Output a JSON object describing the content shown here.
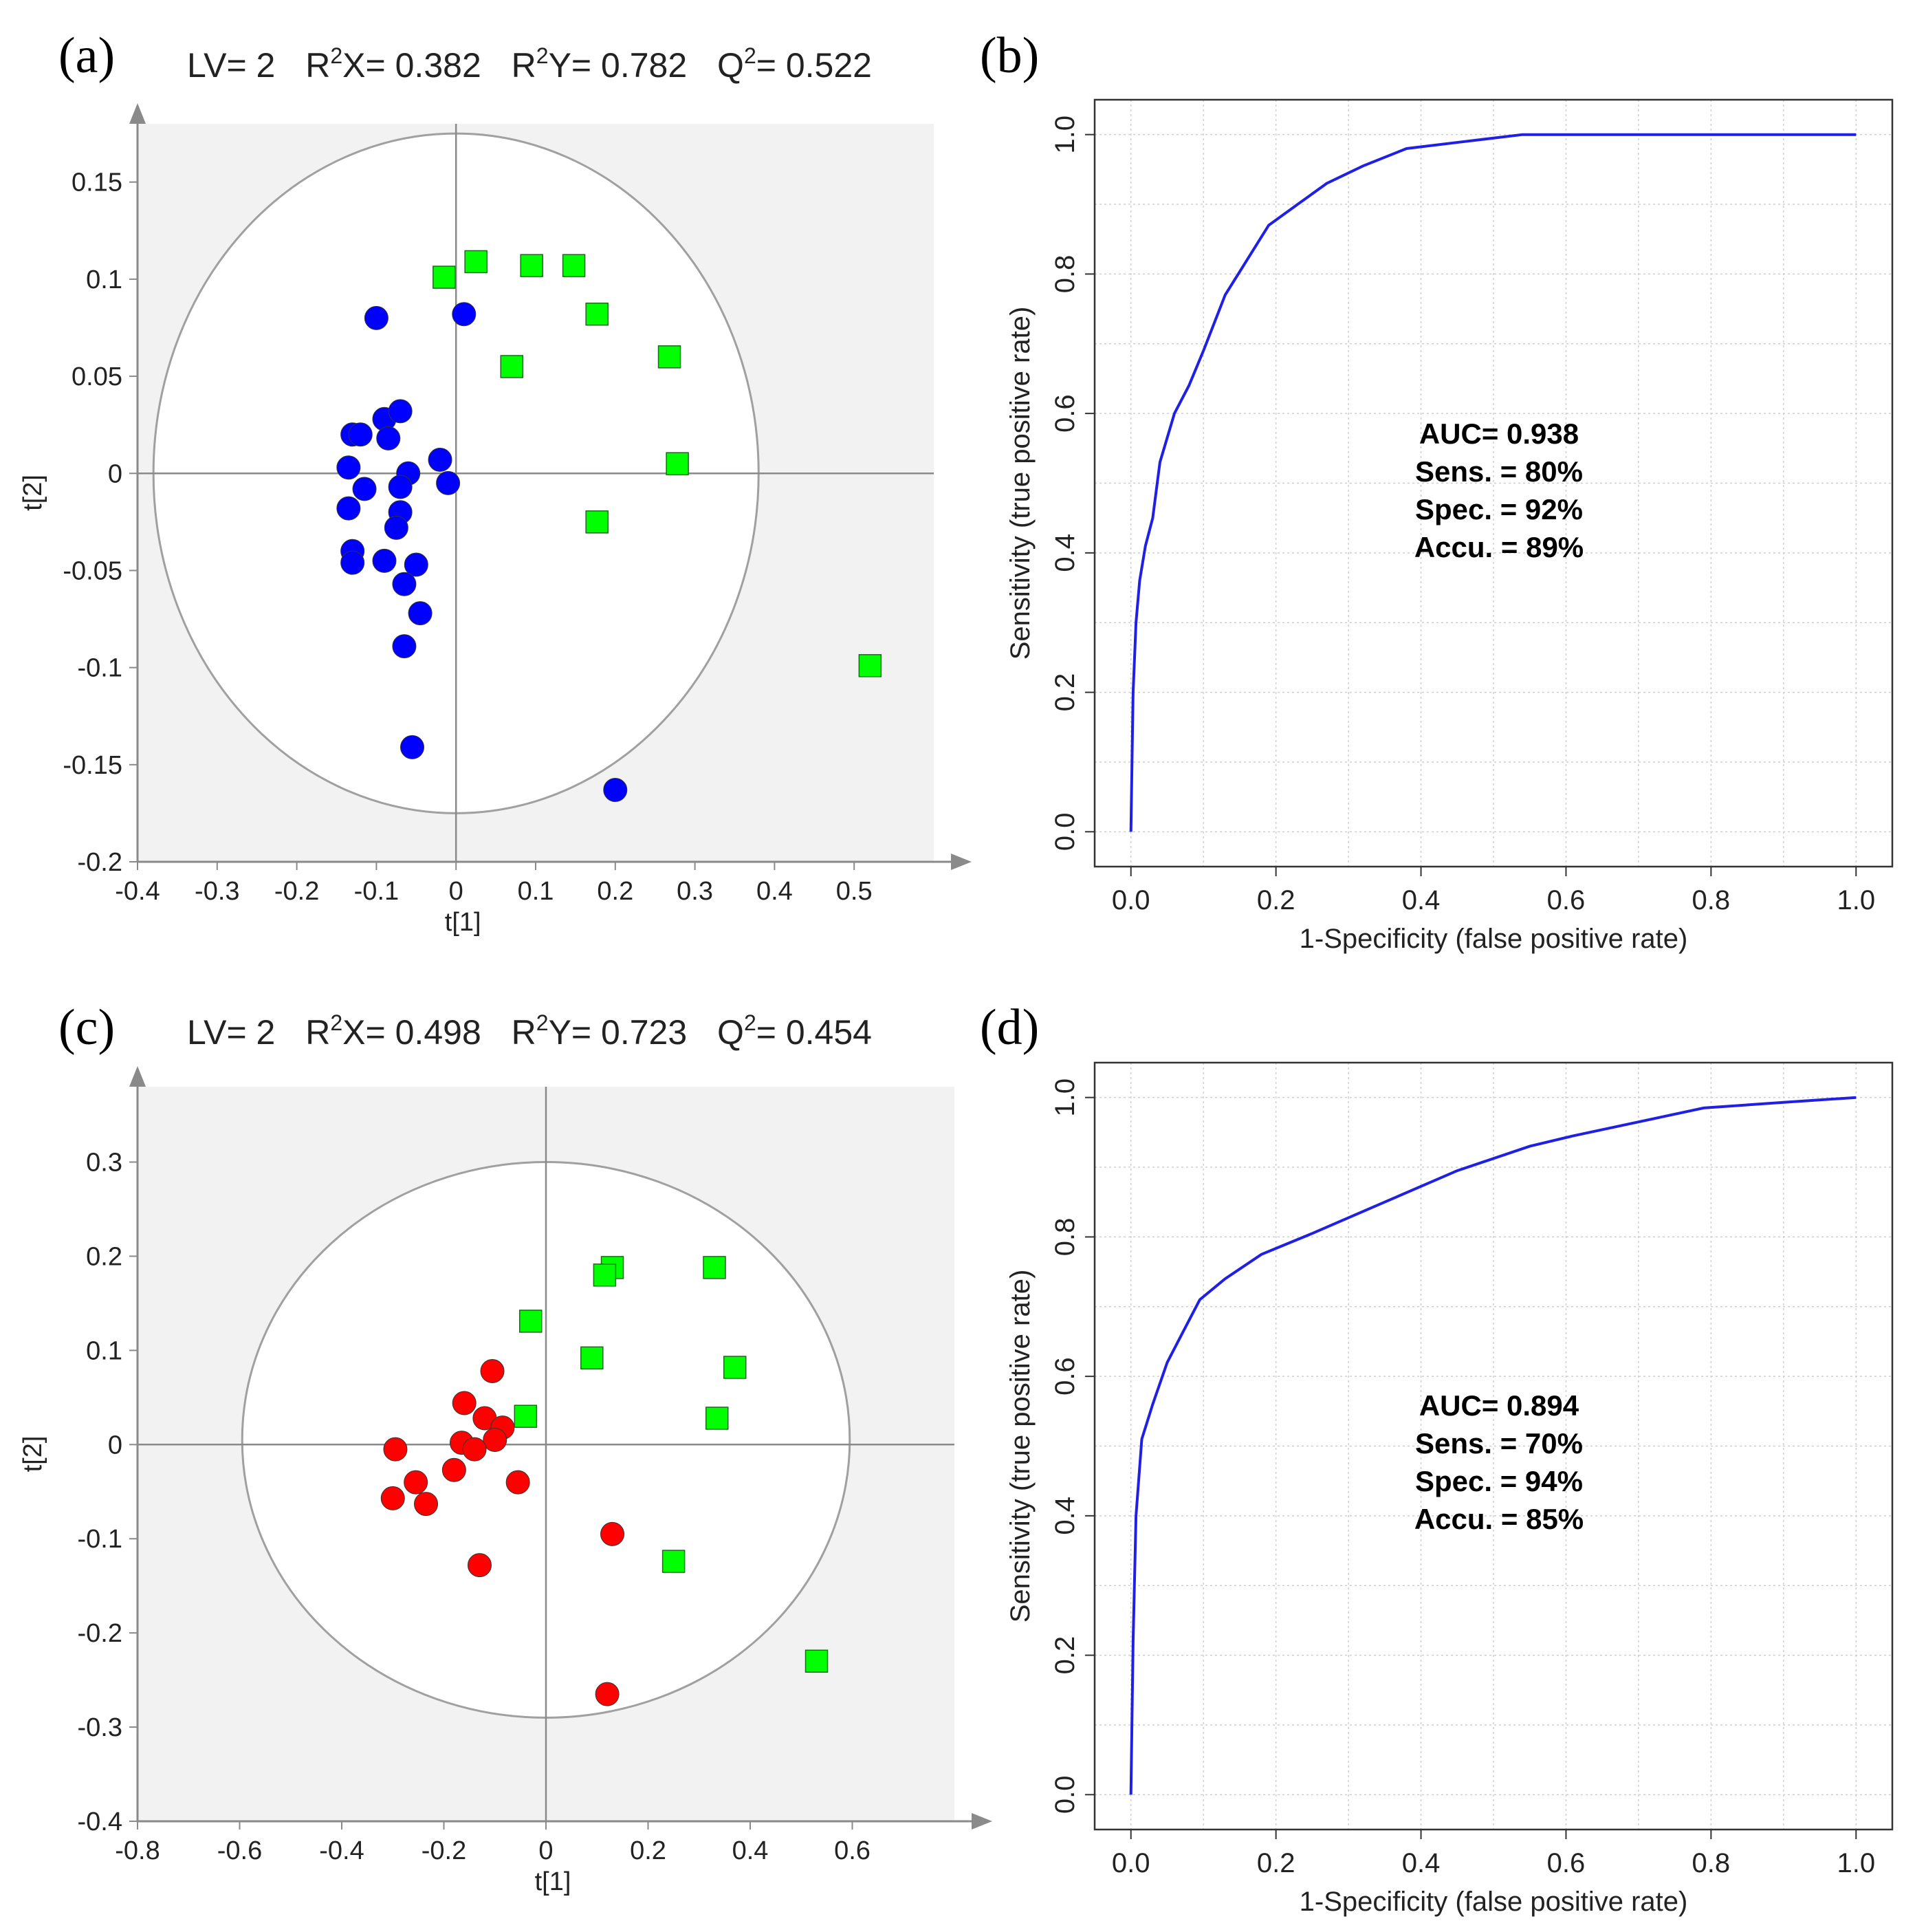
{
  "colors": {
    "blue_class": "#0000ff",
    "red_class": "#ff0000",
    "green_class": "#00ff00",
    "plot_bg": "#f2f2f2",
    "roc_line": "#1f1fe6",
    "circle_line": "#a0a0a0",
    "axis_line": "#8a8a8a",
    "grid": "#cfcfcf"
  },
  "chart_data": [
    {
      "panel": "(a)",
      "type": "scatter",
      "title": "LV= 2  R²X= 0.382  R²Y= 0.782  Q²= 0.522",
      "stats": {
        "LV": "2",
        "R2X": "0.382",
        "R2Y": "0.782",
        "Q2": "0.522"
      },
      "xlabel": "t[1]",
      "ylabel": "t[2]",
      "xlim": [
        -0.4,
        0.6
      ],
      "ylim": [
        -0.2,
        0.18
      ],
      "xticks": [
        "-0.4",
        "-0.3",
        "-0.2",
        "-0.1",
        "0",
        "0.1",
        "0.2",
        "0.3",
        "0.4",
        "0.5"
      ],
      "yticks": [
        "0.15",
        "0.1",
        "0.05",
        "0",
        "-0.05",
        "-0.1",
        "-0.15",
        "-0.2"
      ],
      "ellipse": {
        "center": [
          0,
          0.0
        ],
        "rx": 0.38,
        "ry": 0.175
      },
      "series": [
        {
          "marker": "circle",
          "color": "#0000ff",
          "points": [
            [
              -0.1,
              0.08
            ],
            [
              0.01,
              0.082
            ],
            [
              -0.13,
              0.02
            ],
            [
              -0.12,
              0.02
            ],
            [
              -0.09,
              0.028
            ],
            [
              -0.07,
              0.032
            ],
            [
              -0.085,
              0.018
            ],
            [
              -0.135,
              0.003
            ],
            [
              -0.06,
              0.0
            ],
            [
              -0.02,
              0.007
            ],
            [
              -0.115,
              -0.008
            ],
            [
              -0.07,
              -0.007
            ],
            [
              -0.01,
              -0.005
            ],
            [
              -0.135,
              -0.018
            ],
            [
              -0.07,
              -0.02
            ],
            [
              -0.075,
              -0.028
            ],
            [
              -0.13,
              -0.04
            ],
            [
              -0.13,
              -0.046
            ],
            [
              -0.09,
              -0.045
            ],
            [
              -0.05,
              -0.047
            ],
            [
              -0.065,
              -0.057
            ],
            [
              -0.045,
              -0.072
            ],
            [
              -0.065,
              -0.089
            ],
            [
              -0.055,
              -0.141
            ],
            [
              0.2,
              -0.163
            ]
          ]
        },
        {
          "marker": "square",
          "color": "#00ff00",
          "points": [
            [
              -0.015,
              0.101
            ],
            [
              0.025,
              0.109
            ],
            [
              0.095,
              0.107
            ],
            [
              0.148,
              0.107
            ],
            [
              0.177,
              0.082
            ],
            [
              0.07,
              0.055
            ],
            [
              0.268,
              0.06
            ],
            [
              0.278,
              0.005
            ],
            [
              0.177,
              -0.025
            ],
            [
              0.52,
              -0.099
            ]
          ]
        }
      ]
    },
    {
      "panel": "(b)",
      "type": "line",
      "xlabel": "1-Specificity (false positive rate)",
      "ylabel": "Sensitivity (true positive rate)",
      "xlim": [
        0.0,
        1.0
      ],
      "ylim": [
        0.0,
        1.0
      ],
      "xticks": [
        "0.0",
        "0.2",
        "0.4",
        "0.6",
        "0.8",
        "1.0"
      ],
      "yticks": [
        "0.0",
        "0.2",
        "0.4",
        "0.6",
        "0.8",
        "1.0"
      ],
      "grid": true,
      "x": [
        0.0,
        0.003,
        0.007,
        0.012,
        0.02,
        0.03,
        0.04,
        0.06,
        0.08,
        0.1,
        0.13,
        0.16,
        0.19,
        0.23,
        0.27,
        0.32,
        0.38,
        0.46,
        0.54,
        0.7,
        0.85,
        1.0
      ],
      "y": [
        0.0,
        0.2,
        0.3,
        0.36,
        0.41,
        0.45,
        0.53,
        0.6,
        0.64,
        0.69,
        0.77,
        0.82,
        0.87,
        0.9,
        0.93,
        0.955,
        0.98,
        0.99,
        1.0,
        1.0,
        1.0,
        1.0
      ],
      "annotation": [
        "AUC= 0.938",
        "Sens. = 80%",
        "Spec. = 92%",
        "Accu. = 89%"
      ]
    },
    {
      "panel": "(c)",
      "type": "scatter",
      "title": "LV= 2  R²X= 0.498  R²Y= 0.723  Q²= 0.454",
      "stats": {
        "LV": "2",
        "R2X": "0.498",
        "R2Y": "0.723",
        "Q2": "0.454"
      },
      "xlabel": "t[1]",
      "ylabel": "t[2]",
      "xlim": [
        -0.8,
        0.8
      ],
      "ylim": [
        -0.4,
        0.38
      ],
      "xticks": [
        "-0.8",
        "-0.6",
        "-0.4",
        "-0.2",
        "0",
        "0.2",
        "0.4",
        "0.6"
      ],
      "yticks": [
        "0.3",
        "0.2",
        "0.1",
        "0",
        "-0.1",
        "-0.2",
        "-0.3",
        "-0.4"
      ],
      "ellipse": {
        "center": [
          0,
          0.005
        ],
        "rx": 0.595,
        "ry": 0.295
      },
      "series": [
        {
          "marker": "circle",
          "color": "#ff0000",
          "points": [
            [
              -0.105,
              0.078
            ],
            [
              -0.16,
              0.044
            ],
            [
              -0.12,
              0.028
            ],
            [
              -0.085,
              0.018
            ],
            [
              -0.1,
              0.005
            ],
            [
              -0.165,
              0.002
            ],
            [
              -0.14,
              -0.005
            ],
            [
              -0.295,
              -0.005
            ],
            [
              -0.18,
              -0.027
            ],
            [
              -0.255,
              -0.04
            ],
            [
              -0.055,
              -0.04
            ],
            [
              -0.3,
              -0.057
            ],
            [
              -0.235,
              -0.063
            ],
            [
              -0.13,
              -0.128
            ],
            [
              0.13,
              -0.095
            ],
            [
              0.12,
              -0.265
            ]
          ]
        },
        {
          "marker": "square",
          "color": "#00ff00",
          "points": [
            [
              0.13,
              0.188
            ],
            [
              0.115,
              0.18
            ],
            [
              0.33,
              0.188
            ],
            [
              -0.03,
              0.131
            ],
            [
              0.09,
              0.092
            ],
            [
              0.37,
              0.082
            ],
            [
              0.335,
              0.028
            ],
            [
              -0.04,
              0.03
            ],
            [
              0.25,
              -0.124
            ],
            [
              0.53,
              -0.23
            ]
          ]
        }
      ]
    },
    {
      "panel": "(d)",
      "type": "line",
      "xlabel": "1-Specificity (false positive rate)",
      "ylabel": "Sensitivity (true positive rate)",
      "xlim": [
        0.0,
        1.0
      ],
      "ylim": [
        0.0,
        1.0
      ],
      "xticks": [
        "0.0",
        "0.2",
        "0.4",
        "0.6",
        "0.8",
        "1.0"
      ],
      "yticks": [
        "0.0",
        "0.2",
        "0.4",
        "0.6",
        "0.8",
        "1.0"
      ],
      "grid": true,
      "x": [
        0.0,
        0.003,
        0.007,
        0.015,
        0.03,
        0.05,
        0.07,
        0.095,
        0.13,
        0.18,
        0.25,
        0.35,
        0.45,
        0.55,
        0.61,
        0.7,
        0.79,
        0.9,
        1.0
      ],
      "y": [
        0.0,
        0.22,
        0.4,
        0.51,
        0.56,
        0.62,
        0.66,
        0.71,
        0.74,
        0.775,
        0.805,
        0.85,
        0.895,
        0.93,
        0.945,
        0.965,
        0.985,
        0.993,
        1.0
      ],
      "annotation": [
        "AUC= 0.894",
        "Sens. = 70%",
        "Spec. = 94%",
        "Accu. = 85%"
      ]
    }
  ]
}
